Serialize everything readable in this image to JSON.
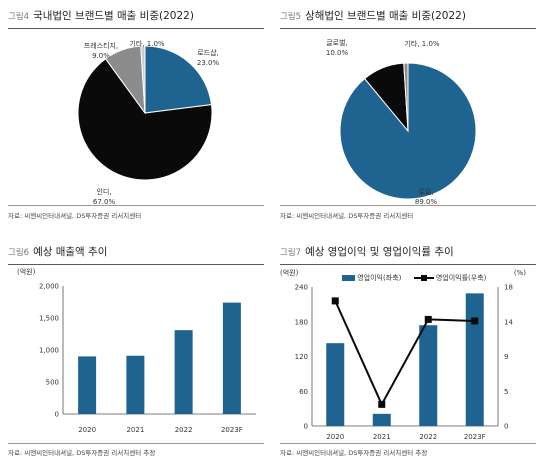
{
  "chart_data": [
    {
      "type": "pie",
      "figure_no": "그림4",
      "title": "국내법인 브랜드별 매출 비중(2022)",
      "source": "자료: 씨앤씨인터내셔널, DS투자증권 리서치센터",
      "slices": [
        {
          "name": "로드샵,",
          "pct_label": "23.0%",
          "value": 23.0,
          "color": "#1f6491"
        },
        {
          "name": "인디,",
          "pct_label": "67.0%",
          "value": 67.0,
          "color": "#0a0a0a"
        },
        {
          "name": "프레스티지,",
          "pct_label": "9.0%",
          "value": 9.0,
          "color": "#8c8c8c"
        },
        {
          "name": "기타, 1.0%",
          "pct_label": "",
          "value": 1.0,
          "color": "#cccccc"
        }
      ]
    },
    {
      "type": "pie",
      "figure_no": "그림5",
      "title": "상해법인 브랜드별 매출 비중(2022)",
      "source": "자료: 씨앤씨인터내셔널, DS투자증권 리서치센터",
      "slices": [
        {
          "name": "로컬,",
          "pct_label": "89.0%",
          "value": 89.0,
          "color": "#1f6491"
        },
        {
          "name": "글로벌,",
          "pct_label": "10.0%",
          "value": 10.0,
          "color": "#0a0a0a"
        },
        {
          "name": "기타, 1.0%",
          "pct_label": "",
          "value": 1.0,
          "color": "#8c8c8c"
        }
      ]
    },
    {
      "type": "bar",
      "figure_no": "그림6",
      "title": "예상 매출액 추이",
      "source": "자료: 씨앤씨인터내셔널, DS투자증권 리서치센터 추정",
      "ylabel": "(억원)",
      "categories": [
        "2020",
        "2021",
        "2022",
        "2023F"
      ],
      "values": [
        900,
        910,
        1310,
        1740
      ],
      "ylim": [
        0,
        2000
      ],
      "yticks": [
        "0",
        "500",
        "1,000",
        "1,500",
        "2,000"
      ],
      "bar_color": "#1f6491",
      "grid": false
    },
    {
      "type": "bar",
      "figure_no": "그림7",
      "title": "예상 영업이익 및 영업이익률 추이",
      "source": "자료: 씨앤씨인터내셔널, DS투자증권 리서치센터 추정",
      "ylabel": "(억원)",
      "y2label": "(%)",
      "categories": [
        "2020",
        "2021",
        "2022",
        "2023F"
      ],
      "ylim": [
        0,
        240
      ],
      "yticks": [
        "0",
        "60",
        "120",
        "180",
        "240"
      ],
      "y2lim": [
        0,
        18
      ],
      "y2ticks": [
        "0",
        "5",
        "9",
        "14",
        "18"
      ],
      "series": [
        {
          "name": "영업이익(좌축)",
          "kind": "bar",
          "values": [
            143,
            21,
            174,
            229
          ],
          "color": "#1f6491"
        },
        {
          "name": "영업이익률(우축)",
          "kind": "line",
          "values": [
            16.2,
            2.8,
            13.8,
            13.6
          ],
          "color": "#0a0a0a"
        }
      ],
      "legend_position": "top",
      "grid": false
    }
  ]
}
